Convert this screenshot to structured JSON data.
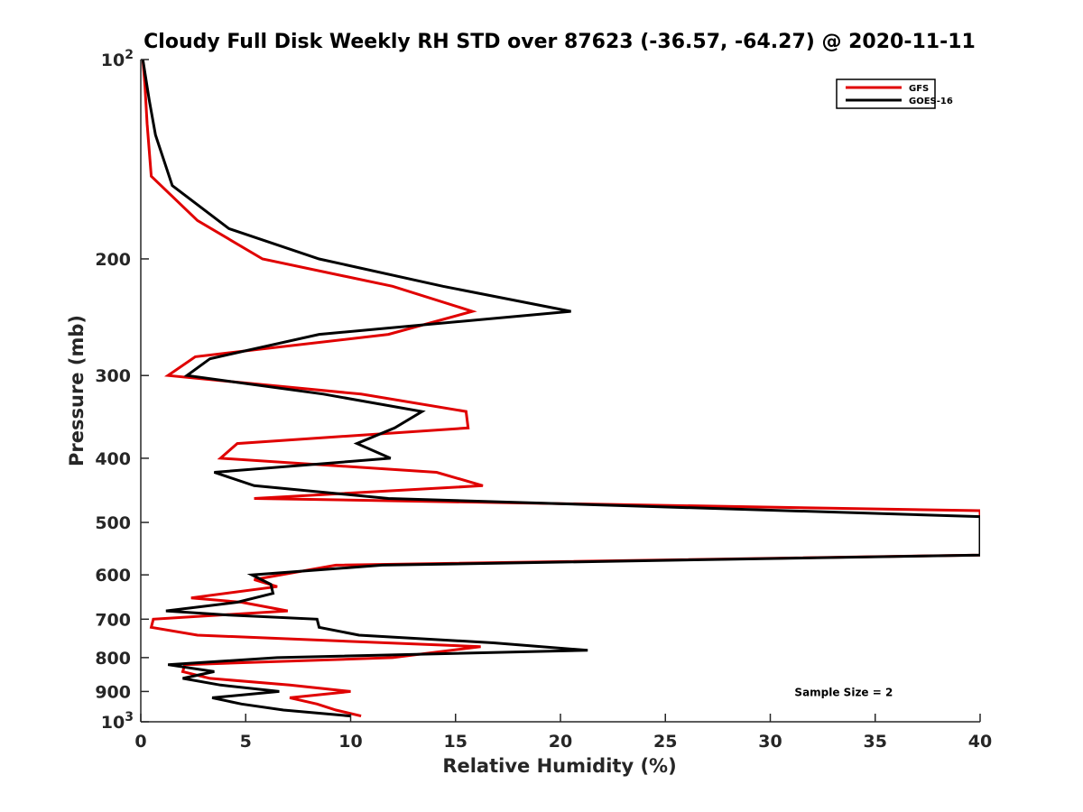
{
  "chart_data": {
    "type": "line",
    "title": "Cloudy Full Disk Weekly RH STD over 87623 (-36.57, -64.27) @ 2020-11-11",
    "xlabel": "Relative Humidity (%)",
    "ylabel": "Pressure (mb)",
    "xlim": [
      0,
      40
    ],
    "ylim": [
      100,
      1000
    ],
    "y_scale": "log",
    "y_reversed": true,
    "x_ticks": [
      0,
      5,
      10,
      15,
      20,
      25,
      30,
      35,
      40
    ],
    "y_ticks": [
      100,
      200,
      300,
      400,
      500,
      600,
      700,
      800,
      900,
      1000
    ],
    "y_tick_labels": [
      {
        "base": "10",
        "exp": "2"
      },
      {
        "base": "200"
      },
      {
        "base": "300"
      },
      {
        "base": "400"
      },
      {
        "base": "500"
      },
      {
        "base": "600"
      },
      {
        "base": "700"
      },
      {
        "base": "800"
      },
      {
        "base": "900"
      },
      {
        "base": "10",
        "exp": "3"
      }
    ],
    "grid": false,
    "legend_position": "top-right",
    "series": [
      {
        "name": "GFS",
        "color": "#e00000",
        "points": [
          [
            0.1,
            100
          ],
          [
            0.2,
            110
          ],
          [
            0.3,
            125
          ],
          [
            0.5,
            150
          ],
          [
            2.7,
            175
          ],
          [
            5.8,
            200
          ],
          [
            12.0,
            220
          ],
          [
            15.8,
            240
          ],
          [
            11.8,
            260
          ],
          [
            2.6,
            281
          ],
          [
            1.3,
            300
          ],
          [
            10.5,
            320
          ],
          [
            15.5,
            340
          ],
          [
            15.6,
            360
          ],
          [
            4.6,
            380
          ],
          [
            3.8,
            400
          ],
          [
            14.1,
            420
          ],
          [
            16.3,
            440
          ],
          [
            5.4,
            460
          ],
          [
            40.0,
            480
          ],
          [
            40.0,
            560
          ],
          [
            9.3,
            580
          ],
          [
            5.4,
            610
          ],
          [
            6.5,
            625
          ],
          [
            2.4,
            650
          ],
          [
            4.8,
            660
          ],
          [
            7.0,
            680
          ],
          [
            0.6,
            700
          ],
          [
            0.5,
            720
          ],
          [
            2.7,
            740
          ],
          [
            16.2,
            770
          ],
          [
            12.0,
            800
          ],
          [
            2.1,
            820
          ],
          [
            2.0,
            840
          ],
          [
            3.3,
            860
          ],
          [
            7.1,
            880
          ],
          [
            10.0,
            900
          ],
          [
            7.1,
            920
          ],
          [
            8.4,
            940
          ],
          [
            9.3,
            960
          ],
          [
            10.5,
            980
          ]
        ]
      },
      {
        "name": "GOES-16",
        "color": "#000000",
        "points": [
          [
            0.1,
            100
          ],
          [
            0.4,
            115
          ],
          [
            0.7,
            130
          ],
          [
            1.5,
            155
          ],
          [
            4.2,
            180
          ],
          [
            8.5,
            200
          ],
          [
            14.4,
            220
          ],
          [
            20.5,
            240
          ],
          [
            8.5,
            260
          ],
          [
            3.3,
            283
          ],
          [
            2.2,
            300
          ],
          [
            8.7,
            320
          ],
          [
            13.4,
            340
          ],
          [
            12.1,
            360
          ],
          [
            10.3,
            380
          ],
          [
            11.9,
            400
          ],
          [
            3.5,
            420
          ],
          [
            5.4,
            440
          ],
          [
            11.8,
            460
          ],
          [
            40.0,
            490
          ],
          [
            40.0,
            560
          ],
          [
            11.5,
            580
          ],
          [
            5.3,
            600
          ],
          [
            6.2,
            620
          ],
          [
            6.3,
            640
          ],
          [
            4.6,
            660
          ],
          [
            1.2,
            680
          ],
          [
            4.2,
            690
          ],
          [
            8.4,
            700
          ],
          [
            8.5,
            720
          ],
          [
            10.4,
            740
          ],
          [
            16.8,
            760
          ],
          [
            21.3,
            780
          ],
          [
            6.5,
            800
          ],
          [
            1.3,
            820
          ],
          [
            3.5,
            840
          ],
          [
            2.0,
            860
          ],
          [
            3.8,
            880
          ],
          [
            6.6,
            900
          ],
          [
            3.4,
            920
          ],
          [
            4.8,
            940
          ],
          [
            6.8,
            960
          ],
          [
            10.0,
            980
          ]
        ]
      }
    ],
    "annotations": [
      {
        "text": "Sample Size = 2",
        "x": 33.5,
        "y": 900
      }
    ]
  }
}
